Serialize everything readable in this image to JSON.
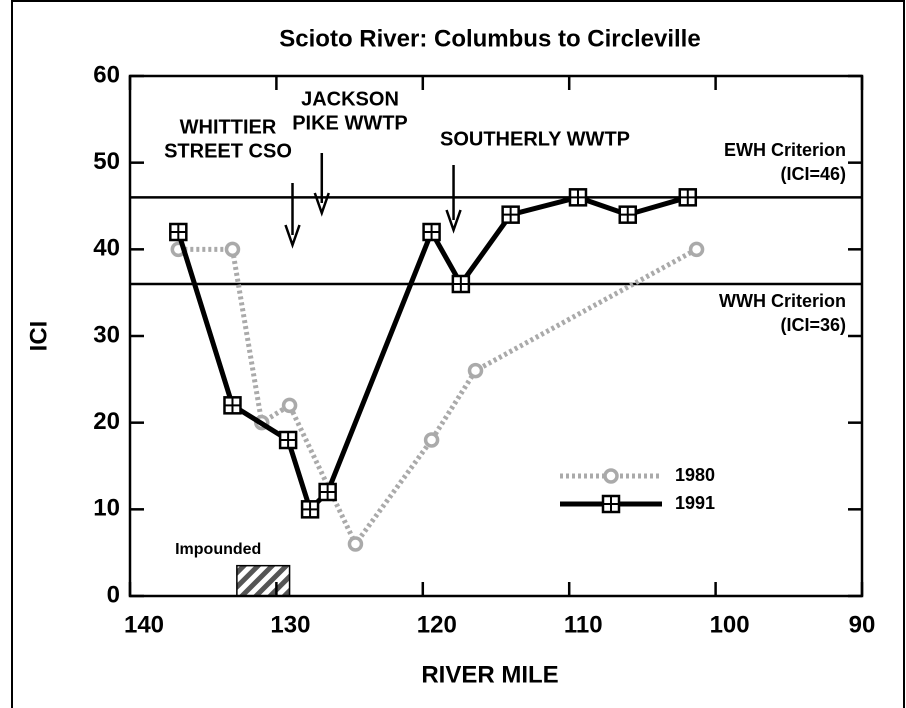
{
  "chart_data": {
    "type": "line",
    "title": "Scioto River: Columbus to Circleville",
    "xlabel": "RIVER MILE",
    "ylabel": "ICI",
    "xlim": [
      140,
      90
    ],
    "xticks": [
      140,
      130,
      120,
      110,
      100,
      90
    ],
    "ylim": [
      0,
      60
    ],
    "yticks": [
      0,
      10,
      20,
      30,
      40,
      50,
      60
    ],
    "series": [
      {
        "name": "1980",
        "color": "#aaaaaa",
        "style": "dotted",
        "marker": "circle",
        "x": [
          136.7,
          133.0,
          131.0,
          129.1,
          124.6,
          119.4,
          116.4,
          101.3
        ],
        "values": [
          40,
          40,
          20,
          22,
          6,
          18,
          26,
          40
        ]
      },
      {
        "name": "1991",
        "color": "#000000",
        "style": "solid",
        "marker": "square-cross",
        "x": [
          136.7,
          133.0,
          129.2,
          127.7,
          126.5,
          119.4,
          117.4,
          114.0,
          109.4,
          106.0,
          101.9
        ],
        "values": [
          42,
          22,
          18,
          10,
          12,
          42,
          36,
          44,
          46,
          44,
          46
        ]
      }
    ],
    "reference_lines": [
      {
        "value": 46,
        "label": [
          "EWH Criterion",
          "(ICI=46)"
        ]
      },
      {
        "value": 36,
        "label": [
          "WWH Criterion",
          "(ICI=36)"
        ]
      }
    ],
    "annotations": [
      {
        "x": 128.9,
        "lines": [
          "WHITTIER",
          "STREET CSO"
        ]
      },
      {
        "x": 126.9,
        "lines": [
          "JACKSON",
          "PIKE WWTP"
        ]
      },
      {
        "x": 117.9,
        "lines": [
          "SOUTHERLY WWTP"
        ]
      }
    ],
    "impounded": {
      "label": "Impounded",
      "x": [
        132.7,
        129.1
      ],
      "y": [
        0,
        3.5
      ]
    },
    "legend": "lower right"
  }
}
